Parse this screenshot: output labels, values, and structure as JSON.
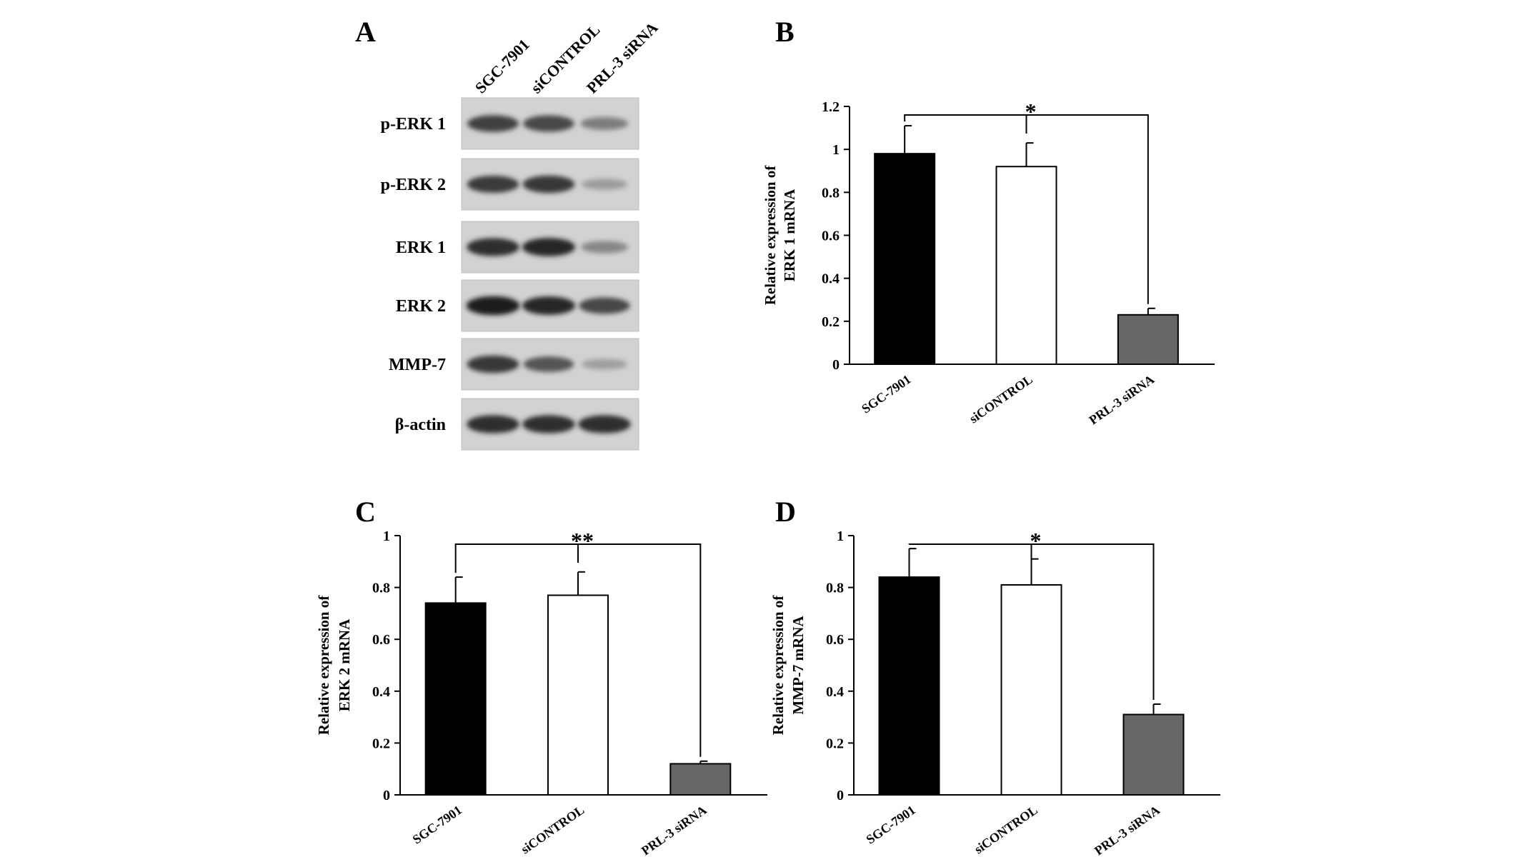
{
  "panel_a": {
    "letter": "A",
    "lanes": [
      "SGC-7901",
      "siCONTROL",
      "PRL-3 siRNA"
    ],
    "rows": [
      {
        "label": "p-ERK 1",
        "intensities": [
          0.75,
          0.72,
          0.45
        ]
      },
      {
        "label": "p-ERK 2",
        "intensities": [
          0.78,
          0.8,
          0.3
        ]
      },
      {
        "label": "ERK 1",
        "intensities": [
          0.85,
          0.88,
          0.4
        ]
      },
      {
        "label": "ERK 2",
        "intensities": [
          0.92,
          0.88,
          0.72
        ]
      },
      {
        "label": "MMP-7",
        "intensities": [
          0.8,
          0.65,
          0.28
        ]
      },
      {
        "label": "β-actin",
        "intensities": [
          0.85,
          0.85,
          0.85
        ]
      }
    ]
  },
  "chart_data": [
    {
      "panel": "B",
      "type": "bar",
      "categories": [
        "SGC-7901",
        "siCONTROL",
        "PRL-3 siRNA"
      ],
      "values": [
        0.98,
        0.92,
        0.23
      ],
      "errors": [
        0.13,
        0.11,
        0.03
      ],
      "bar_colors": [
        "#000000",
        "#ffffff",
        "#666666"
      ],
      "ylabel_line1": "Relative expression of",
      "ylabel_line2": "ERK 1 mRNA",
      "ylim": [
        0,
        1.2
      ],
      "yticks": [
        "0",
        "0.2",
        "0.4",
        "0.6",
        "0.8",
        "1",
        "1.2"
      ],
      "significance": "*"
    },
    {
      "panel": "C",
      "type": "bar",
      "categories": [
        "SGC-7901",
        "siCONTROL",
        "PRL-3 siRNA"
      ],
      "values": [
        0.74,
        0.77,
        0.12
      ],
      "errors": [
        0.1,
        0.09,
        0.01
      ],
      "bar_colors": [
        "#000000",
        "#ffffff",
        "#666666"
      ],
      "ylabel_line1": "Relative expression of",
      "ylabel_line2": "ERK 2 mRNA",
      "ylim": [
        0,
        1
      ],
      "yticks": [
        "0",
        "0.2",
        "0.4",
        "0.6",
        "0.8",
        "1"
      ],
      "significance": "**"
    },
    {
      "panel": "D",
      "type": "bar",
      "categories": [
        "SGC-7901",
        "siCONTROL",
        "PRL-3 siRNA"
      ],
      "values": [
        0.84,
        0.81,
        0.31
      ],
      "errors": [
        0.11,
        0.1,
        0.04
      ],
      "bar_colors": [
        "#000000",
        "#ffffff",
        "#666666"
      ],
      "ylabel_line1": "Relative expression of",
      "ylabel_line2": "MMP-7 mRNA",
      "ylim": [
        0,
        1
      ],
      "yticks": [
        "0",
        "0.2",
        "0.4",
        "0.6",
        "0.8",
        "1"
      ],
      "significance": "*"
    }
  ]
}
